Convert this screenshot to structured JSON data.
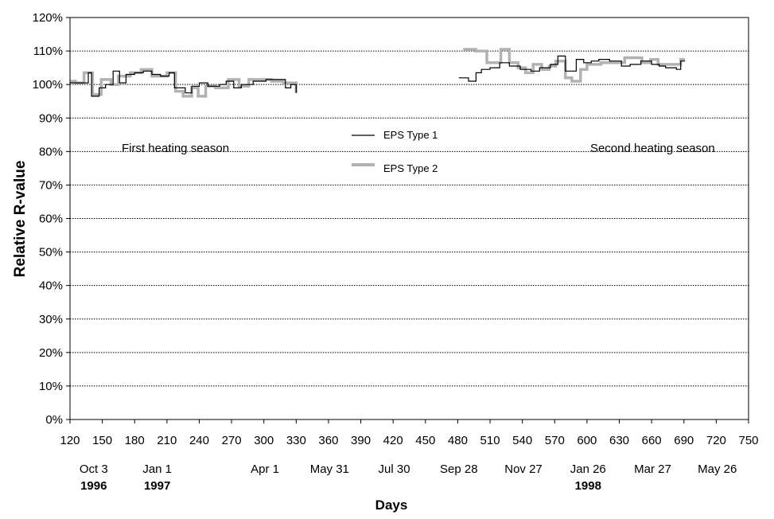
{
  "chart_data": {
    "type": "line",
    "line_style": "step",
    "xlabel": "Days",
    "ylabel": "Relative R-value",
    "xlim": [
      120,
      750
    ],
    "ylim": [
      0,
      120
    ],
    "x_ticks": [
      120,
      150,
      180,
      210,
      240,
      270,
      300,
      330,
      360,
      390,
      420,
      450,
      480,
      510,
      540,
      570,
      600,
      630,
      660,
      690,
      720,
      750
    ],
    "y_ticks": [
      0,
      10,
      20,
      30,
      40,
      50,
      60,
      70,
      80,
      90,
      100,
      110,
      120
    ],
    "y_tick_labels": [
      "0%",
      "10%",
      "20%",
      "30%",
      "40%",
      "50%",
      "60%",
      "70%",
      "80%",
      "90%",
      "100%",
      "110%",
      "120%"
    ],
    "grid": "horizontal dotted",
    "legend_position": "center",
    "date_labels": [
      {
        "x": 142,
        "label": "Oct 3"
      },
      {
        "x": 201,
        "label": "Jan 1"
      },
      {
        "x": 301,
        "label": "Apr 1"
      },
      {
        "x": 361,
        "label": "May 31"
      },
      {
        "x": 421,
        "label": "Jul 30"
      },
      {
        "x": 481,
        "label": "Sep 28"
      },
      {
        "x": 541,
        "label": "Nov 27"
      },
      {
        "x": 601,
        "label": "Jan 26"
      },
      {
        "x": 661,
        "label": "Mar 27"
      },
      {
        "x": 721,
        "label": "May 26"
      }
    ],
    "year_labels": [
      {
        "x": 142,
        "label": "1996"
      },
      {
        "x": 201,
        "label": "1997"
      },
      {
        "x": 601,
        "label": "1998"
      }
    ],
    "annotations": [
      {
        "x": 168,
        "y": 81,
        "text": "First heating season"
      },
      {
        "x": 603,
        "y": 81,
        "text": "Second heating season"
      }
    ],
    "series": [
      {
        "name": "EPS Type 1",
        "color": "#000000",
        "segments": [
          [
            [
              120,
              100.5
            ],
            [
              137,
              103.5
            ],
            [
              140,
              96.5
            ],
            [
              147,
              99.0
            ],
            [
              153,
              100.0
            ],
            [
              160,
              104.0
            ],
            [
              166,
              100.5
            ],
            [
              172,
              103.0
            ],
            [
              180,
              103.5
            ],
            [
              188,
              104.0
            ],
            [
              196,
              103.0
            ],
            [
              204,
              102.5
            ],
            [
              212,
              103.5
            ],
            [
              217,
              99.0
            ],
            [
              227,
              97.5
            ],
            [
              233,
              99.5
            ],
            [
              240,
              100.5
            ],
            [
              248,
              99.5
            ],
            [
              259,
              100.0
            ],
            [
              265,
              101.0
            ],
            [
              272,
              99.0
            ],
            [
              279,
              100.0
            ],
            [
              290,
              101.0
            ],
            [
              302,
              101.5
            ],
            [
              320,
              99.0
            ],
            [
              325,
              100.0
            ],
            [
              330,
              97.5
            ]
          ],
          [
            [
              481,
              102.0
            ],
            [
              490,
              101.0
            ],
            [
              497,
              103.5
            ],
            [
              502,
              104.5
            ],
            [
              510,
              105.0
            ],
            [
              519,
              106.5
            ],
            [
              528,
              105.5
            ],
            [
              538,
              104.5
            ],
            [
              548,
              104.0
            ],
            [
              556,
              105.0
            ],
            [
              566,
              106.0
            ],
            [
              573,
              108.5
            ],
            [
              580,
              104.0
            ],
            [
              590,
              107.5
            ],
            [
              597,
              106.5
            ],
            [
              604,
              107.0
            ],
            [
              611,
              107.5
            ],
            [
              621,
              107.0
            ],
            [
              632,
              105.5
            ],
            [
              640,
              106.0
            ],
            [
              650,
              107.0
            ],
            [
              660,
              106.0
            ],
            [
              667,
              105.5
            ],
            [
              673,
              105.0
            ],
            [
              683,
              104.5
            ],
            [
              687,
              107.0
            ],
            [
              691,
              107.0
            ]
          ]
        ]
      },
      {
        "name": "EPS Type 2",
        "color": "#b2b2b2",
        "segments": [
          [
            [
              120,
              101.0
            ],
            [
              125,
              100.5
            ],
            [
              133,
              103.5
            ],
            [
              141,
              97.0
            ],
            [
              149,
              101.5
            ],
            [
              158,
              100.0
            ],
            [
              165,
              102.5
            ],
            [
              176,
              103.5
            ],
            [
              186,
              104.5
            ],
            [
              196,
              102.5
            ],
            [
              210,
              103.5
            ],
            [
              218,
              98.0
            ],
            [
              225,
              96.5
            ],
            [
              233,
              99.0
            ],
            [
              239,
              96.5
            ],
            [
              246,
              99.5
            ],
            [
              255,
              99.0
            ],
            [
              267,
              101.5
            ],
            [
              277,
              99.5
            ],
            [
              286,
              101.5
            ],
            [
              295,
              101.5
            ],
            [
              307,
              101.0
            ],
            [
              318,
              100.5
            ],
            [
              325,
              100.5
            ],
            [
              330,
              97.5
            ]
          ],
          [
            [
              485,
              110.5
            ],
            [
              497,
              110.0
            ],
            [
              507,
              106.5
            ],
            [
              520,
              110.5
            ],
            [
              528,
              106.5
            ],
            [
              536,
              105.0
            ],
            [
              543,
              103.5
            ],
            [
              550,
              106.0
            ],
            [
              558,
              104.5
            ],
            [
              565,
              105.5
            ],
            [
              571,
              107.0
            ],
            [
              580,
              102.0
            ],
            [
              586,
              101.0
            ],
            [
              594,
              104.5
            ],
            [
              600,
              106.0
            ],
            [
              613,
              106.5
            ],
            [
              627,
              106.5
            ],
            [
              635,
              108.0
            ],
            [
              651,
              106.5
            ],
            [
              659,
              107.5
            ],
            [
              666,
              106.0
            ],
            [
              678,
              106.0
            ],
            [
              687,
              107.5
            ],
            [
              691,
              107.5
            ]
          ]
        ]
      }
    ]
  }
}
